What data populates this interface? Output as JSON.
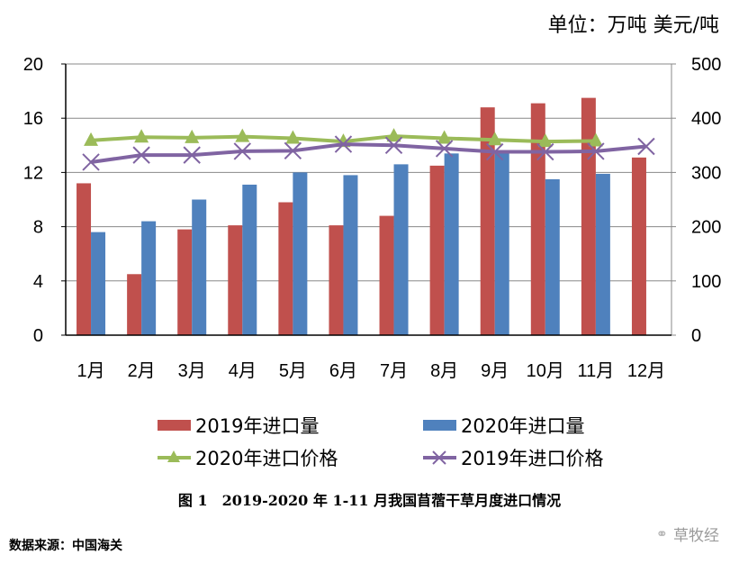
{
  "unit_label": "单位：万吨 美元/吨",
  "caption": "图 1　2019-2020 年 1-11 月我国苜蓿干草月度进口情况",
  "source": "数据来源：中国海关",
  "watermark": {
    "icon": "wechat-icon",
    "text": "草牧经"
  },
  "chart_data": {
    "type": "bar",
    "title": "图 1　2019-2020 年 1-11 月我国苜蓿干草月度进口情况",
    "xlabel": "",
    "ylabel": "万吨",
    "y2label": "美元/吨",
    "categories": [
      "1月",
      "2月",
      "3月",
      "4月",
      "5月",
      "6月",
      "7月",
      "8月",
      "9月",
      "10月",
      "11月",
      "12月"
    ],
    "ylim": [
      0,
      20
    ],
    "y_ticks": [
      "0",
      "4",
      "8",
      "12",
      "16",
      "20"
    ],
    "y2lim": [
      0,
      500
    ],
    "y2_ticks": [
      "0",
      "100",
      "200",
      "300",
      "400",
      "500"
    ],
    "grid": true,
    "legend_position": "bottom",
    "series": [
      {
        "name": "2019年进口量",
        "type": "bar",
        "axis": "left",
        "color": "#c0504d",
        "values": [
          11.2,
          4.5,
          7.8,
          8.1,
          9.8,
          8.1,
          8.8,
          12.5,
          16.8,
          17.1,
          17.5,
          13.1
        ]
      },
      {
        "name": "2020年进口量",
        "type": "bar",
        "axis": "left",
        "color": "#4f81bd",
        "values": [
          7.6,
          8.4,
          10.0,
          11.1,
          12.0,
          11.8,
          12.6,
          13.4,
          13.5,
          11.5,
          11.9,
          null
        ]
      },
      {
        "name": "2020年进口价格",
        "type": "line",
        "axis": "right",
        "color": "#9bbb59",
        "marker": "triangle",
        "values": [
          359,
          365,
          364,
          366,
          363,
          357,
          367,
          363,
          360,
          357,
          358,
          null
        ]
      },
      {
        "name": "2019年进口价格",
        "type": "line",
        "axis": "right",
        "color": "#8064a2",
        "marker": "x",
        "values": [
          319,
          332,
          332,
          339,
          340,
          352,
          350,
          344,
          338,
          338,
          339,
          348
        ]
      }
    ],
    "legend": [
      {
        "series": 0,
        "label": "2019年进口量"
      },
      {
        "series": 1,
        "label": "2020年进口量"
      },
      {
        "series": 2,
        "label": "2020年进口价格"
      },
      {
        "series": 3,
        "label": "2019年进口价格"
      }
    ]
  }
}
